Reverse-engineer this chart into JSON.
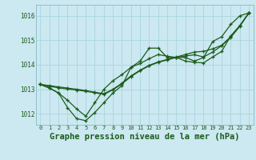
{
  "background_color": "#cce8f0",
  "grid_color": "#aad4e0",
  "line_color": "#1a5c1a",
  "xlabel": "Graphe pression niveau de la mer (hPa)",
  "xlabel_fontsize": 7.5,
  "xtick_labels": [
    "0",
    "1",
    "2",
    "3",
    "4",
    "5",
    "6",
    "7",
    "8",
    "9",
    "10",
    "11",
    "12",
    "13",
    "14",
    "15",
    "16",
    "17",
    "18",
    "19",
    "20",
    "21",
    "22",
    "23"
  ],
  "xtick_fontsize": 5,
  "ytick_labels": [
    "1012",
    "1013",
    "1014",
    "1015",
    "1016"
  ],
  "ytick_values": [
    1012,
    1013,
    1014,
    1015,
    1016
  ],
  "ytick_fontsize": 5.5,
  "ylim": [
    1011.55,
    1016.45
  ],
  "xlim": [
    -0.5,
    23.5
  ],
  "line1": [
    1013.2,
    1013.05,
    1012.85,
    1012.25,
    1011.8,
    1011.72,
    1012.05,
    1012.45,
    1012.85,
    1013.15,
    1013.9,
    1014.15,
    1014.68,
    1014.68,
    1014.3,
    1014.3,
    1014.3,
    1014.15,
    1014.3,
    1014.95,
    1015.15,
    1015.65,
    1016.0,
    1016.12
  ],
  "line2": [
    1013.2,
    1013.05,
    1012.85,
    1012.55,
    1012.2,
    1011.9,
    1012.45,
    1013.0,
    1013.35,
    1013.6,
    1013.9,
    1014.05,
    1014.25,
    1014.42,
    1014.35,
    1014.3,
    1014.15,
    1014.1,
    1014.08,
    1014.32,
    1014.55,
    1015.18,
    1015.6,
    1016.12
  ],
  "line3": [
    1013.2,
    1013.15,
    1013.1,
    1013.05,
    1013.0,
    1012.95,
    1012.88,
    1012.82,
    1013.0,
    1013.25,
    1013.55,
    1013.78,
    1013.98,
    1014.12,
    1014.22,
    1014.32,
    1014.42,
    1014.52,
    1014.55,
    1014.65,
    1014.8,
    1015.15,
    1015.6,
    1016.12
  ],
  "line4": [
    1013.2,
    1013.12,
    1013.06,
    1013.01,
    1012.97,
    1012.92,
    1012.86,
    1012.79,
    1012.98,
    1013.22,
    1013.52,
    1013.76,
    1013.96,
    1014.1,
    1014.2,
    1014.3,
    1014.36,
    1014.41,
    1014.32,
    1014.52,
    1014.78,
    1015.12,
    1015.57,
    1016.12
  ]
}
